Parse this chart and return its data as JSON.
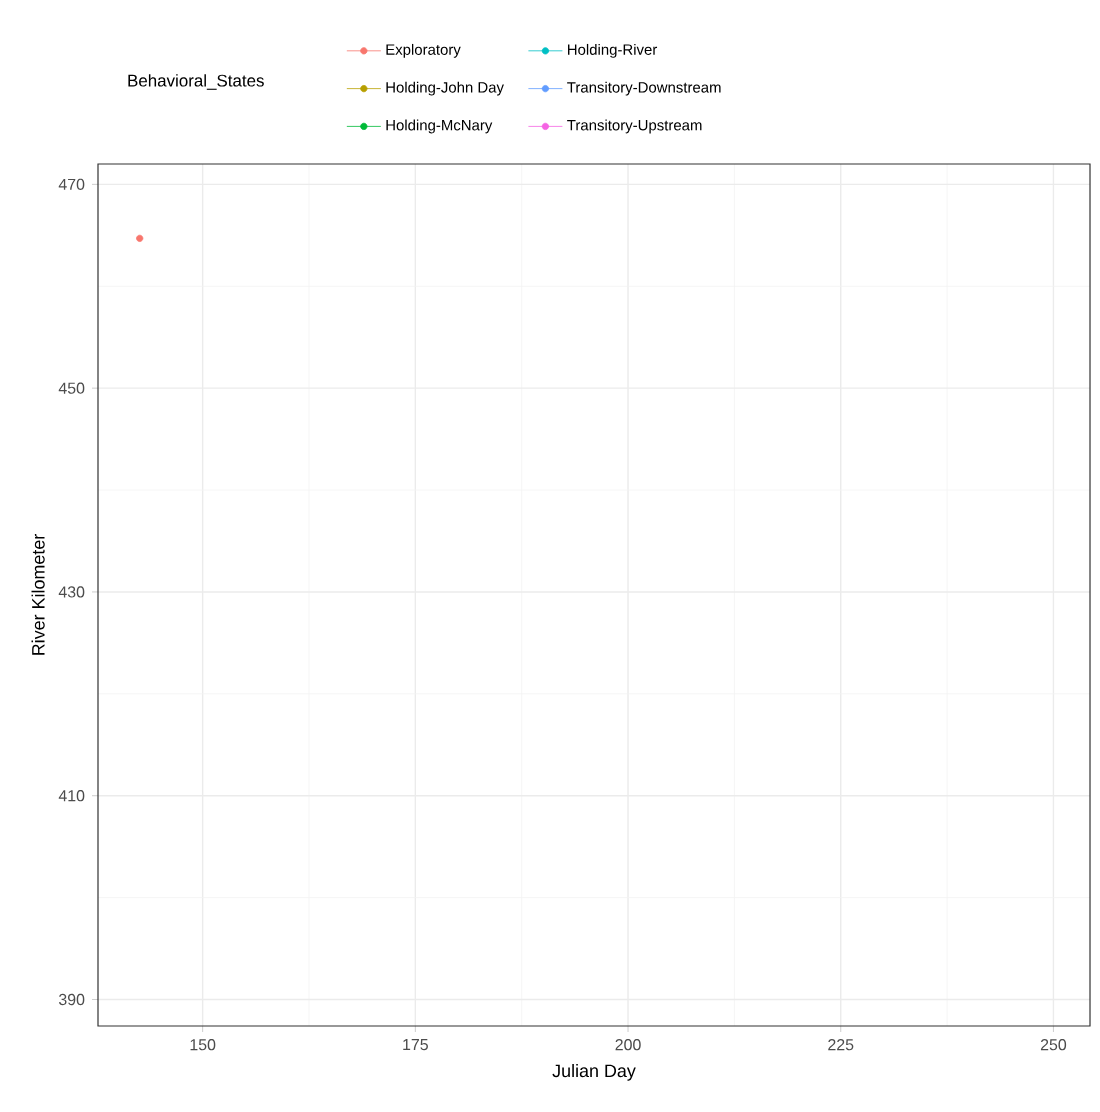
{
  "chart_data": {
    "type": "scatter",
    "xlabel": "Julian Day",
    "ylabel": "River Kilometer",
    "legend_title": "Behavioral_States",
    "legend": "top",
    "grid": true,
    "marker": "circle",
    "line_style": "solid",
    "xlim": [
      137.7,
      254.3
    ],
    "ylim": [
      387.4,
      472
    ],
    "xticks": [
      150,
      175,
      200,
      225,
      250
    ],
    "yticks": [
      390,
      410,
      430,
      450,
      470
    ],
    "series": [
      {
        "name": "Exploratory",
        "color": "#f8766d",
        "x": [
          142.6
        ],
        "values": [
          464.7
        ]
      },
      {
        "name": "Holding-John Day",
        "color": "#b79f00"
      },
      {
        "name": "Holding-McNary",
        "color": "#00ba38"
      },
      {
        "name": "Holding-River",
        "color": "#00bfc4"
      },
      {
        "name": "Transitory-Downstream",
        "color": "#619cff"
      },
      {
        "name": "Transitory-Upstream",
        "color": "#f564e3"
      }
    ]
  }
}
